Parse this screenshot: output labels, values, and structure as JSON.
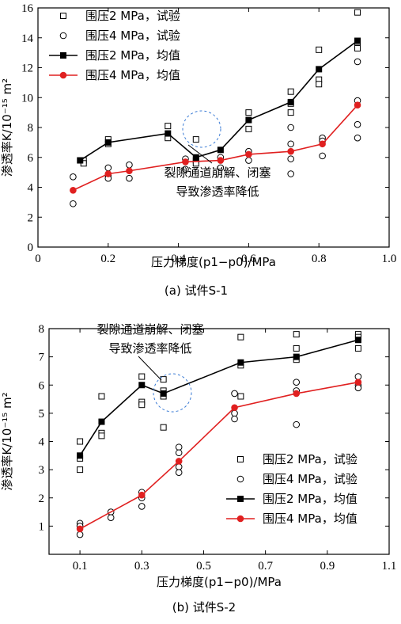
{
  "chart_data": [
    {
      "type": "line",
      "caption": "(a)  试件S-1",
      "xlabel": "压力梯度(p1−p0)/MPa",
      "ylabel": "渗透率K/10⁻¹⁵ m²",
      "xlim": [
        0,
        1.0
      ],
      "ylim": [
        0,
        16
      ],
      "xticks": [
        0,
        0.2,
        0.4,
        0.6,
        0.8,
        1.0
      ],
      "xticklabels": [
        "0",
        "0.2",
        "0.4",
        "0.6",
        "0.8",
        "1.0"
      ],
      "yticks": [
        0,
        2,
        4,
        6,
        8,
        10,
        12,
        14,
        16
      ],
      "yticklabels": [
        "0",
        "2",
        "4",
        "6",
        "8",
        "10",
        "12",
        "14",
        "16"
      ],
      "legend_position": "top-left",
      "annotation": [
        "裂隙通道崩解、闭塞",
        "导致渗透率降低"
      ],
      "series": [
        {
          "name": "围压2 MPa，试验",
          "kind": "scatter",
          "marker": "open-square",
          "color": "#000000",
          "points": [
            [
              0.13,
              5.8
            ],
            [
              0.13,
              5.6
            ],
            [
              0.2,
              7.2
            ],
            [
              0.2,
              6.9
            ],
            [
              0.37,
              8.1
            ],
            [
              0.37,
              7.3
            ],
            [
              0.45,
              7.2
            ],
            [
              0.45,
              5.8
            ],
            [
              0.45,
              5.6
            ],
            [
              0.6,
              9.0
            ],
            [
              0.6,
              7.9
            ],
            [
              0.72,
              10.4
            ],
            [
              0.72,
              9.6
            ],
            [
              0.72,
              9.0
            ],
            [
              0.8,
              13.2
            ],
            [
              0.8,
              11.2
            ],
            [
              0.8,
              10.9
            ],
            [
              0.91,
              15.7
            ],
            [
              0.91,
              13.7
            ],
            [
              0.91,
              13.3
            ]
          ]
        },
        {
          "name": "围压4 MPa，试验",
          "kind": "scatter",
          "marker": "open-circle",
          "color": "#000000",
          "points": [
            [
              0.1,
              4.7
            ],
            [
              0.1,
              2.9
            ],
            [
              0.2,
              5.3
            ],
            [
              0.2,
              4.8
            ],
            [
              0.2,
              4.6
            ],
            [
              0.26,
              5.5
            ],
            [
              0.26,
              4.6
            ],
            [
              0.42,
              5.9
            ],
            [
              0.42,
              5.2
            ],
            [
              0.52,
              6.0
            ],
            [
              0.52,
              5.3
            ],
            [
              0.6,
              6.4
            ],
            [
              0.6,
              5.8
            ],
            [
              0.72,
              8.0
            ],
            [
              0.72,
              6.9
            ],
            [
              0.72,
              5.9
            ],
            [
              0.72,
              4.9
            ],
            [
              0.81,
              7.3
            ],
            [
              0.81,
              7.1
            ],
            [
              0.81,
              6.1
            ],
            [
              0.91,
              12.4
            ],
            [
              0.91,
              9.8
            ],
            [
              0.91,
              8.2
            ],
            [
              0.91,
              7.3
            ]
          ]
        },
        {
          "name": "围压2 MPa，均值",
          "kind": "line",
          "marker": "filled-square",
          "color": "#000000",
          "x": [
            0.12,
            0.2,
            0.37,
            0.45,
            0.52,
            0.6,
            0.72,
            0.8,
            0.91
          ],
          "y": [
            5.8,
            7.0,
            7.6,
            6.0,
            6.5,
            8.5,
            9.7,
            11.9,
            13.8
          ]
        },
        {
          "name": "围压4 MPa，均值",
          "kind": "line",
          "marker": "filled-circle",
          "color": "#e02020",
          "x": [
            0.1,
            0.2,
            0.26,
            0.42,
            0.52,
            0.6,
            0.72,
            0.81,
            0.91
          ],
          "y": [
            3.8,
            4.9,
            5.1,
            5.7,
            5.8,
            6.2,
            6.4,
            6.9,
            9.5
          ]
        }
      ]
    },
    {
      "type": "line",
      "caption": "(b)  试件S-2",
      "xlabel": "压力梯度(p1−p0)/MPa",
      "ylabel": "渗透率K/10⁻¹⁵ m²",
      "xlim": [
        0,
        1.1
      ],
      "ylim": [
        0,
        8
      ],
      "xticks": [
        0.1,
        0.3,
        0.5,
        0.7,
        0.9,
        1.1
      ],
      "xticklabels": [
        "0.1",
        "0.3",
        "0.5",
        "0.7",
        "0.9",
        "1.1"
      ],
      "yticks": [
        1,
        2,
        3,
        4,
        5,
        6,
        7,
        8
      ],
      "yticklabels": [
        "1",
        "2",
        "3",
        "4",
        "5",
        "6",
        "7",
        "8"
      ],
      "legend_position": "bottom-right",
      "annotation": [
        "裂隙通道崩解、闭塞",
        "导致渗透率降低"
      ],
      "series": [
        {
          "name": "围压2 MPa，试验",
          "kind": "scatter",
          "marker": "open-square",
          "color": "#000000",
          "points": [
            [
              0.1,
              4.0
            ],
            [
              0.1,
              3.4
            ],
            [
              0.1,
              3.0
            ],
            [
              0.17,
              5.6
            ],
            [
              0.17,
              4.3
            ],
            [
              0.17,
              4.2
            ],
            [
              0.3,
              6.3
            ],
            [
              0.3,
              5.4
            ],
            [
              0.3,
              5.3
            ],
            [
              0.37,
              6.2
            ],
            [
              0.37,
              5.8
            ],
            [
              0.37,
              5.6
            ],
            [
              0.37,
              4.5
            ],
            [
              0.62,
              7.7
            ],
            [
              0.62,
              6.7
            ],
            [
              0.62,
              5.6
            ],
            [
              0.8,
              7.8
            ],
            [
              0.8,
              7.3
            ],
            [
              0.8,
              6.9
            ],
            [
              1.0,
              7.8
            ],
            [
              1.0,
              7.7
            ],
            [
              1.0,
              7.3
            ]
          ]
        },
        {
          "name": "围压4 MPa，试验",
          "kind": "scatter",
          "marker": "open-circle",
          "color": "#000000",
          "points": [
            [
              0.1,
              1.1
            ],
            [
              0.1,
              1.0
            ],
            [
              0.1,
              0.7
            ],
            [
              0.2,
              1.5
            ],
            [
              0.2,
              1.3
            ],
            [
              0.3,
              2.2
            ],
            [
              0.3,
              2.0
            ],
            [
              0.3,
              1.7
            ],
            [
              0.42,
              3.8
            ],
            [
              0.42,
              3.6
            ],
            [
              0.42,
              3.1
            ],
            [
              0.42,
              2.9
            ],
            [
              0.6,
              5.7
            ],
            [
              0.6,
              5.0
            ],
            [
              0.6,
              4.8
            ],
            [
              0.8,
              6.1
            ],
            [
              0.8,
              5.8
            ],
            [
              0.8,
              4.6
            ],
            [
              1.0,
              6.3
            ],
            [
              1.0,
              6.0
            ],
            [
              1.0,
              5.9
            ]
          ]
        },
        {
          "name": "围压2 MPa，均值",
          "kind": "line",
          "marker": "filled-square",
          "color": "#000000",
          "x": [
            0.1,
            0.17,
            0.3,
            0.37,
            0.62,
            0.8,
            1.0
          ],
          "y": [
            3.5,
            4.7,
            6.0,
            5.7,
            6.8,
            7.0,
            7.6
          ]
        },
        {
          "name": "围压4 MPa，均值",
          "kind": "line",
          "marker": "filled-circle",
          "color": "#e02020",
          "x": [
            0.1,
            0.3,
            0.42,
            0.6,
            0.8,
            1.0
          ],
          "y": [
            0.9,
            2.1,
            3.3,
            5.2,
            5.7,
            6.1
          ]
        }
      ]
    }
  ]
}
